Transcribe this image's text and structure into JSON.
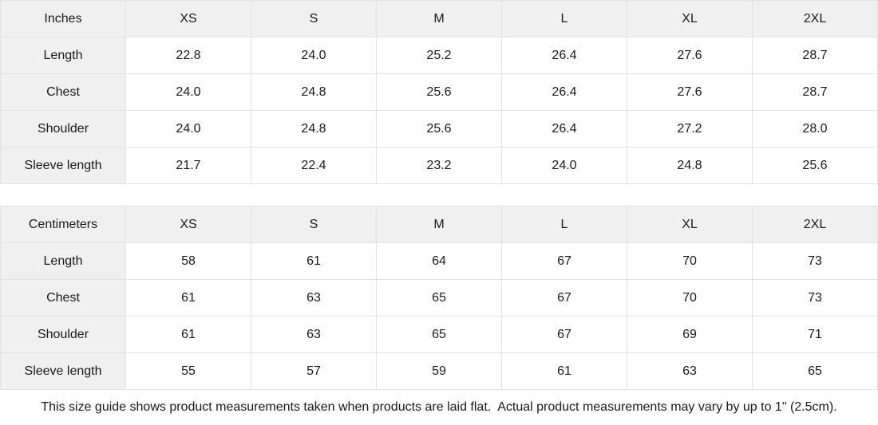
{
  "tables": [
    {
      "unit_label": "Inches",
      "sizes": [
        "XS",
        "S",
        "M",
        "L",
        "XL",
        "2XL"
      ],
      "rows": [
        {
          "label": "Length",
          "values": [
            "22.8",
            "24.0",
            "25.2",
            "26.4",
            "27.6",
            "28.7"
          ]
        },
        {
          "label": "Chest",
          "values": [
            "24.0",
            "24.8",
            "25.6",
            "26.4",
            "27.6",
            "28.7"
          ]
        },
        {
          "label": "Shoulder",
          "values": [
            "24.0",
            "24.8",
            "25.6",
            "26.4",
            "27.2",
            "28.0"
          ]
        },
        {
          "label": "Sleeve length",
          "values": [
            "21.7",
            "22.4",
            "23.2",
            "24.0",
            "24.8",
            "25.6"
          ]
        }
      ]
    },
    {
      "unit_label": "Centimeters",
      "sizes": [
        "XS",
        "S",
        "M",
        "L",
        "XL",
        "2XL"
      ],
      "rows": [
        {
          "label": "Length",
          "values": [
            "58",
            "61",
            "64",
            "67",
            "70",
            "73"
          ]
        },
        {
          "label": "Chest",
          "values": [
            "61",
            "63",
            "65",
            "67",
            "70",
            "73"
          ]
        },
        {
          "label": "Shoulder",
          "values": [
            "61",
            "63",
            "65",
            "67",
            "69",
            "71"
          ]
        },
        {
          "label": "Sleeve length",
          "values": [
            "55",
            "57",
            "59",
            "61",
            "63",
            "65"
          ]
        }
      ]
    }
  ],
  "footer": {
    "note": "This size guide shows product measurements taken when products are laid flat.  Actual product measurements may vary by up to 1\" (2.5cm)."
  },
  "colors": {
    "header_bg": "#f0f0f0",
    "border": "#e2e2e2",
    "text": "#1a1a1a",
    "background": "#ffffff"
  }
}
